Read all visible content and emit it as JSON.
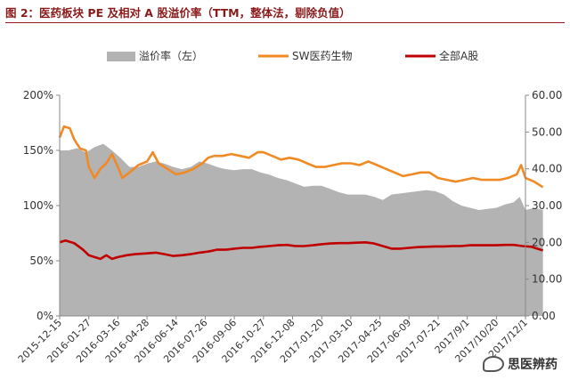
{
  "figure": {
    "title": "图 2：医药板块 PE 及相对 A 股溢价率（TTM，整体法，剔除负值）",
    "watermark": "思医辨药"
  },
  "chart_data": {
    "type": "area+line",
    "title": "图 2：医药板块 PE 及相对 A 股溢价率（TTM，整体法，剔除负值）",
    "legend_position": "top",
    "grid": false,
    "colors": {
      "premium": "#b3b3b3",
      "sw_pharma": "#f08a24",
      "a_share": "#c00000"
    },
    "x_tick_labels": [
      "2015-12-15",
      "2016-01-27",
      "2016-03-16",
      "2016-04-28",
      "2016-06-14",
      "2016-07-26",
      "2016-09-06",
      "2016-10-27",
      "2016-12-08",
      "2017-01-20",
      "2017-03-10",
      "2017-04-25",
      "2017-06-09",
      "2017-07-21",
      "2017/9/1",
      "2017/10/20",
      "2017/12/1"
    ],
    "left_axis": {
      "ylim": [
        0,
        200
      ],
      "ticks": [
        "0%",
        "50%",
        "100%",
        "150%",
        "200%"
      ]
    },
    "right_axis": {
      "ylim": [
        0,
        60
      ],
      "ticks": [
        "0.00",
        "10.00",
        "20.00",
        "30.00",
        "40.00",
        "50.00",
        "60.00"
      ]
    },
    "series": [
      {
        "name": "溢价率（左）",
        "axis": "left",
        "kind": "area",
        "points": [
          [
            0,
            150
          ],
          [
            0.3,
            150
          ],
          [
            0.6,
            152
          ],
          [
            0.9,
            148
          ],
          [
            1.2,
            153
          ],
          [
            1.5,
            156
          ],
          [
            1.8,
            150
          ],
          [
            2.1,
            143
          ],
          [
            2.4,
            135
          ],
          [
            2.7,
            135
          ],
          [
            3.0,
            138
          ],
          [
            3.3,
            140
          ],
          [
            3.6,
            138
          ],
          [
            3.9,
            135
          ],
          [
            4.2,
            133
          ],
          [
            4.5,
            135
          ],
          [
            4.8,
            140
          ],
          [
            5.1,
            138
          ],
          [
            5.4,
            135
          ],
          [
            5.7,
            133
          ],
          [
            6.0,
            132
          ],
          [
            6.3,
            133
          ],
          [
            6.6,
            133
          ],
          [
            6.9,
            130
          ],
          [
            7.2,
            128
          ],
          [
            7.5,
            125
          ],
          [
            7.8,
            123
          ],
          [
            8.1,
            120
          ],
          [
            8.4,
            117
          ],
          [
            8.7,
            118
          ],
          [
            9.0,
            118
          ],
          [
            9.3,
            115
          ],
          [
            9.6,
            112
          ],
          [
            9.9,
            110
          ],
          [
            10.2,
            110
          ],
          [
            10.5,
            110
          ],
          [
            10.8,
            108
          ],
          [
            11.1,
            105
          ],
          [
            11.4,
            110
          ],
          [
            11.7,
            111
          ],
          [
            12.0,
            112
          ],
          [
            12.3,
            113
          ],
          [
            12.6,
            114
          ],
          [
            12.9,
            113
          ],
          [
            13.2,
            110
          ],
          [
            13.5,
            104
          ],
          [
            13.8,
            100
          ],
          [
            14.1,
            98
          ],
          [
            14.4,
            96
          ],
          [
            14.7,
            97
          ],
          [
            15.0,
            98
          ],
          [
            15.3,
            101
          ],
          [
            15.6,
            103
          ],
          [
            15.8,
            108
          ],
          [
            16.0,
            96
          ],
          [
            16.3,
            98
          ],
          [
            16.6,
            96
          ]
        ]
      },
      {
        "name": "SW医药生物",
        "axis": "right",
        "kind": "line",
        "points": [
          [
            0,
            48.5
          ],
          [
            0.15,
            51.5
          ],
          [
            0.35,
            51.0
          ],
          [
            0.5,
            48.0
          ],
          [
            0.7,
            45.5
          ],
          [
            0.9,
            45.0
          ],
          [
            1.0,
            40.5
          ],
          [
            1.2,
            37.5
          ],
          [
            1.4,
            40.0
          ],
          [
            1.6,
            41.5
          ],
          [
            1.8,
            44.0
          ],
          [
            2.0,
            40.5
          ],
          [
            2.15,
            37.5
          ],
          [
            2.4,
            39.0
          ],
          [
            2.7,
            41.0
          ],
          [
            3.0,
            42.0
          ],
          [
            3.2,
            44.5
          ],
          [
            3.4,
            41.5
          ],
          [
            3.7,
            40.0
          ],
          [
            4.0,
            38.5
          ],
          [
            4.3,
            39.0
          ],
          [
            4.6,
            40.0
          ],
          [
            4.9,
            41.5
          ],
          [
            5.1,
            43.0
          ],
          [
            5.3,
            43.5
          ],
          [
            5.6,
            43.5
          ],
          [
            5.9,
            44.0
          ],
          [
            6.2,
            43.5
          ],
          [
            6.5,
            43.0
          ],
          [
            6.8,
            44.5
          ],
          [
            7.0,
            44.5
          ],
          [
            7.3,
            43.5
          ],
          [
            7.6,
            42.5
          ],
          [
            7.9,
            43.0
          ],
          [
            8.2,
            42.5
          ],
          [
            8.5,
            41.5
          ],
          [
            8.8,
            40.5
          ],
          [
            9.1,
            40.5
          ],
          [
            9.4,
            41.0
          ],
          [
            9.7,
            41.5
          ],
          [
            10.0,
            41.5
          ],
          [
            10.3,
            41.0
          ],
          [
            10.6,
            42.0
          ],
          [
            10.9,
            41.0
          ],
          [
            11.2,
            40.0
          ],
          [
            11.5,
            39.0
          ],
          [
            11.8,
            38.0
          ],
          [
            12.1,
            38.5
          ],
          [
            12.4,
            39.0
          ],
          [
            12.7,
            39.0
          ],
          [
            13.0,
            37.5
          ],
          [
            13.3,
            37.0
          ],
          [
            13.6,
            36.5
          ],
          [
            13.9,
            37.0
          ],
          [
            14.2,
            37.5
          ],
          [
            14.5,
            37.0
          ],
          [
            14.8,
            37.0
          ],
          [
            15.1,
            37.0
          ],
          [
            15.4,
            37.5
          ],
          [
            15.7,
            38.5
          ],
          [
            15.85,
            41.0
          ],
          [
            16.0,
            37.5
          ],
          [
            16.3,
            36.5
          ],
          [
            16.6,
            35.0
          ]
        ]
      },
      {
        "name": "全部A股",
        "axis": "right",
        "kind": "line",
        "points": [
          [
            0,
            20.0
          ],
          [
            0.2,
            20.5
          ],
          [
            0.5,
            19.8
          ],
          [
            0.8,
            18.0
          ],
          [
            1.0,
            16.5
          ],
          [
            1.2,
            16.0
          ],
          [
            1.4,
            15.5
          ],
          [
            1.6,
            16.5
          ],
          [
            1.8,
            15.5
          ],
          [
            2.0,
            16.0
          ],
          [
            2.3,
            16.5
          ],
          [
            2.6,
            16.8
          ],
          [
            3.0,
            17.0
          ],
          [
            3.3,
            17.2
          ],
          [
            3.6,
            16.8
          ],
          [
            3.9,
            16.3
          ],
          [
            4.2,
            16.5
          ],
          [
            4.5,
            16.8
          ],
          [
            4.8,
            17.2
          ],
          [
            5.1,
            17.5
          ],
          [
            5.4,
            18.0
          ],
          [
            5.7,
            18.0
          ],
          [
            6.0,
            18.3
          ],
          [
            6.3,
            18.5
          ],
          [
            6.6,
            18.5
          ],
          [
            6.9,
            18.8
          ],
          [
            7.2,
            19.0
          ],
          [
            7.5,
            19.2
          ],
          [
            7.8,
            19.3
          ],
          [
            8.1,
            19.0
          ],
          [
            8.4,
            19.0
          ],
          [
            8.7,
            19.2
          ],
          [
            9.0,
            19.5
          ],
          [
            9.3,
            19.7
          ],
          [
            9.6,
            19.8
          ],
          [
            9.9,
            19.8
          ],
          [
            10.2,
            19.9
          ],
          [
            10.5,
            20.0
          ],
          [
            10.8,
            19.7
          ],
          [
            11.1,
            19.0
          ],
          [
            11.4,
            18.3
          ],
          [
            11.7,
            18.3
          ],
          [
            12.0,
            18.5
          ],
          [
            12.3,
            18.7
          ],
          [
            12.6,
            18.8
          ],
          [
            12.9,
            18.9
          ],
          [
            13.2,
            18.9
          ],
          [
            13.5,
            19.0
          ],
          [
            13.8,
            19.0
          ],
          [
            14.1,
            19.2
          ],
          [
            14.4,
            19.2
          ],
          [
            14.7,
            19.2
          ],
          [
            15.0,
            19.2
          ],
          [
            15.3,
            19.3
          ],
          [
            15.6,
            19.3
          ],
          [
            15.9,
            19.0
          ],
          [
            16.2,
            18.8
          ],
          [
            16.4,
            18.3
          ],
          [
            16.6,
            17.8
          ]
        ]
      }
    ]
  }
}
